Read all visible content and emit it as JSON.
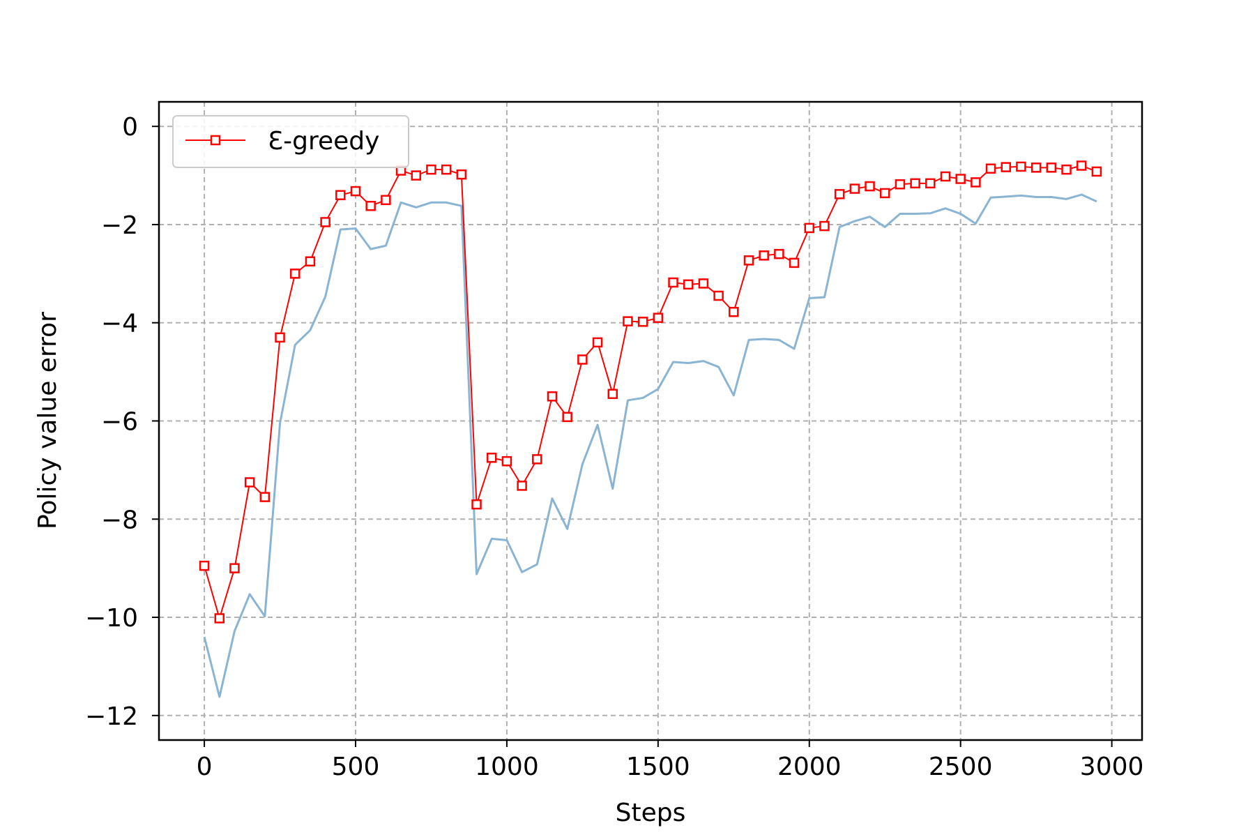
{
  "chart_data": {
    "type": "line",
    "xlabel": "Steps",
    "ylabel": "Policy value error",
    "xlim": [
      -150,
      3100
    ],
    "ylim": [
      -12.5,
      0.5
    ],
    "xticks": [
      0,
      500,
      1000,
      1500,
      2000,
      2500,
      3000
    ],
    "yticks": [
      0,
      -2,
      -4,
      -6,
      -8,
      -10,
      -12
    ],
    "xtick_labels": [
      "0",
      "500",
      "1000",
      "1500",
      "2000",
      "2500",
      "3000"
    ],
    "ytick_labels": [
      "0",
      "−2",
      "−4",
      "−6",
      "−8",
      "−10",
      "−12"
    ],
    "grid": true,
    "legend_position": "upper-left",
    "x": [
      0,
      50,
      100,
      150,
      200,
      250,
      300,
      350,
      400,
      450,
      500,
      550,
      600,
      650,
      700,
      750,
      800,
      850,
      900,
      950,
      1000,
      1050,
      1100,
      1150,
      1200,
      1250,
      1300,
      1350,
      1400,
      1450,
      1500,
      1550,
      1600,
      1650,
      1700,
      1750,
      1800,
      1850,
      1900,
      1950,
      2000,
      2050,
      2100,
      2150,
      2200,
      2250,
      2300,
      2350,
      2400,
      2450,
      2500,
      2550,
      2600,
      2650,
      2700,
      2750,
      2800,
      2850,
      2900,
      2950
    ],
    "series": [
      {
        "name": "Ɛ-greedy",
        "color": "#ff0000",
        "marker": "square",
        "values": [
          -8.95,
          -10.02,
          -9.0,
          -7.25,
          -7.55,
          -4.3,
          -3.0,
          -2.75,
          -1.95,
          -1.4,
          -1.32,
          -1.62,
          -1.5,
          -0.9,
          -1.0,
          -0.88,
          -0.88,
          -0.98,
          -7.7,
          -6.75,
          -6.82,
          -7.32,
          -6.78,
          -5.5,
          -5.92,
          -4.75,
          -4.4,
          -5.45,
          -3.97,
          -3.98,
          -3.9,
          -3.18,
          -3.22,
          -3.2,
          -3.45,
          -3.78,
          -2.73,
          -2.63,
          -2.6,
          -2.78,
          -2.07,
          -2.03,
          -1.38,
          -1.27,
          -1.22,
          -1.36,
          -1.18,
          -1.16,
          -1.16,
          -1.02,
          -1.07,
          -1.14,
          -0.86,
          -0.83,
          -0.82,
          -0.84,
          -0.84,
          -0.88,
          -0.8,
          -0.92
        ]
      },
      {
        "color": "#8ab4d4",
        "marker": "none",
        "values": [
          -10.4,
          -11.62,
          -10.28,
          -9.53,
          -9.98,
          -6.05,
          -4.45,
          -4.15,
          -3.47,
          -2.1,
          -2.08,
          -2.5,
          -2.43,
          -1.55,
          -1.65,
          -1.55,
          -1.55,
          -1.62,
          -9.12,
          -8.4,
          -8.43,
          -9.08,
          -8.92,
          -7.58,
          -8.2,
          -6.88,
          -6.08,
          -7.38,
          -5.58,
          -5.53,
          -5.35,
          -4.8,
          -4.82,
          -4.78,
          -4.9,
          -5.48,
          -4.35,
          -4.33,
          -4.35,
          -4.53,
          -3.5,
          -3.48,
          -2.05,
          -1.93,
          -1.84,
          -2.05,
          -1.78,
          -1.78,
          -1.77,
          -1.67,
          -1.78,
          -1.98,
          -1.45,
          -1.43,
          -1.41,
          -1.44,
          -1.44,
          -1.48,
          -1.39,
          -1.53
        ]
      }
    ]
  }
}
